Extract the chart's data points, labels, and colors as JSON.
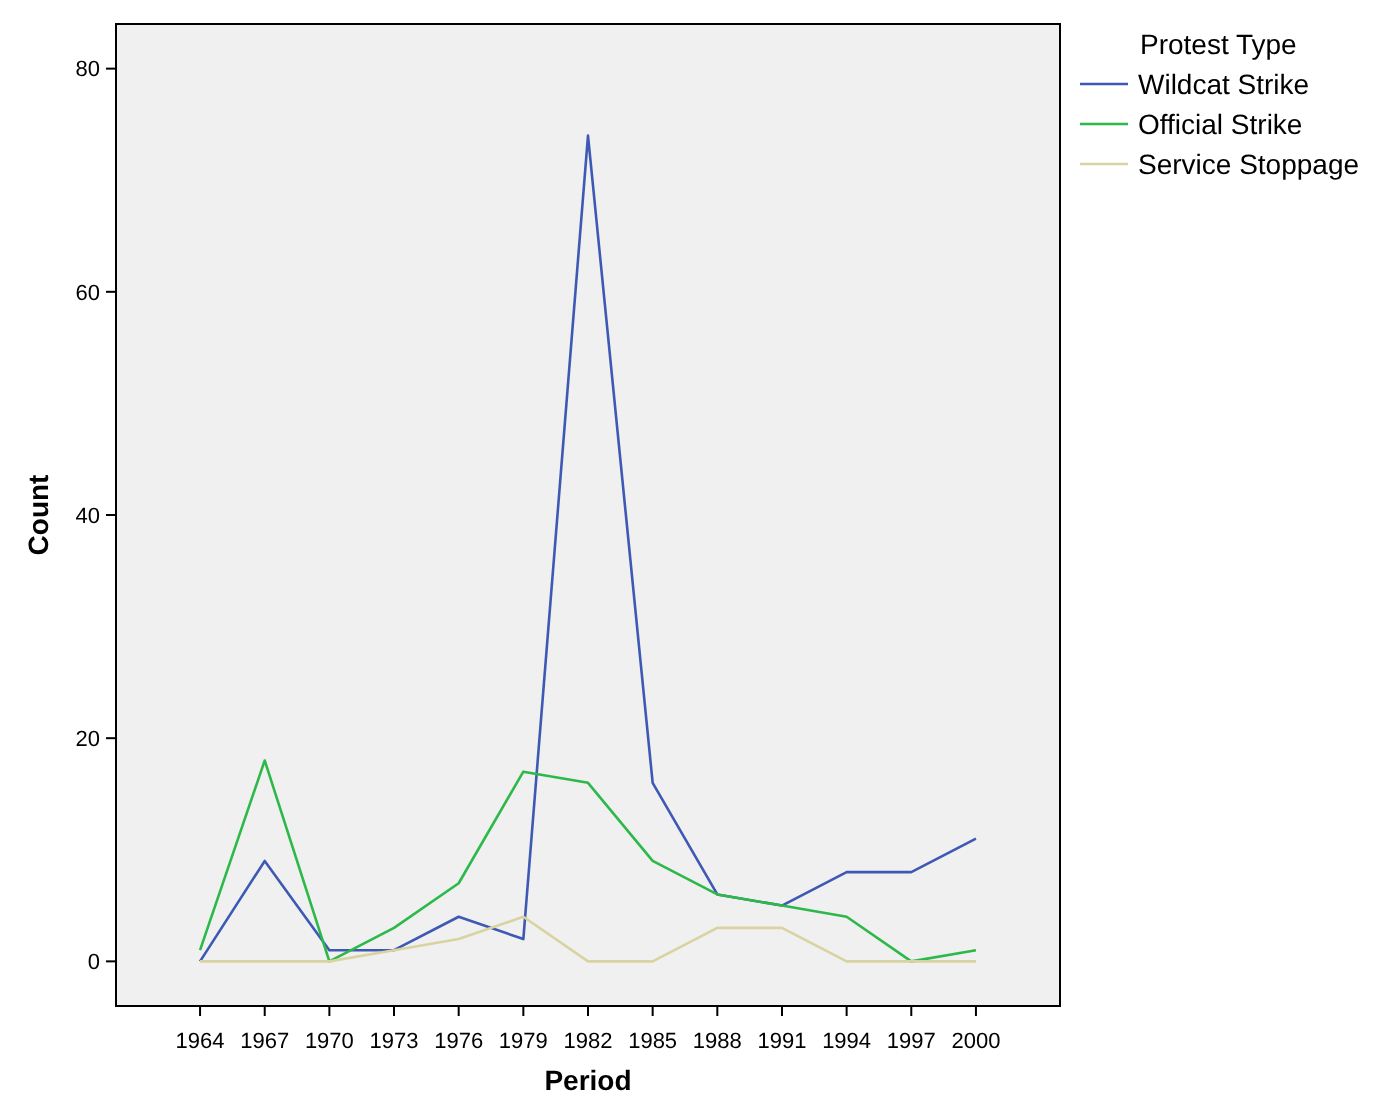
{
  "chart_data": {
    "type": "line",
    "xlabel": "Period",
    "ylabel": "Count",
    "legend_title": "Protest Type",
    "legend": "top right",
    "grid": false,
    "marker": "none",
    "line_style": "solid",
    "categories": [
      "1964",
      "1967",
      "1970",
      "1973",
      "1976",
      "1979",
      "1982",
      "1985",
      "1988",
      "1991",
      "1994",
      "1997",
      "2000"
    ],
    "ylim": [
      -4,
      84
    ],
    "yticks": [
      0,
      20,
      40,
      60,
      80
    ],
    "series": [
      {
        "name": "Wildcat Strike",
        "color": "#3e59b4",
        "values": [
          0,
          9,
          1,
          1,
          4,
          2,
          74,
          16,
          6,
          5,
          8,
          8,
          11
        ]
      },
      {
        "name": "Official Strike",
        "color": "#2db84a",
        "values": [
          1,
          18,
          0,
          3,
          7,
          17,
          16,
          9,
          6,
          5,
          4,
          0,
          1
        ]
      },
      {
        "name": "Service Stoppage",
        "color": "#d8d3a0",
        "values": [
          0,
          0,
          0,
          1,
          2,
          4,
          0,
          0,
          3,
          3,
          0,
          0,
          0
        ]
      }
    ]
  }
}
